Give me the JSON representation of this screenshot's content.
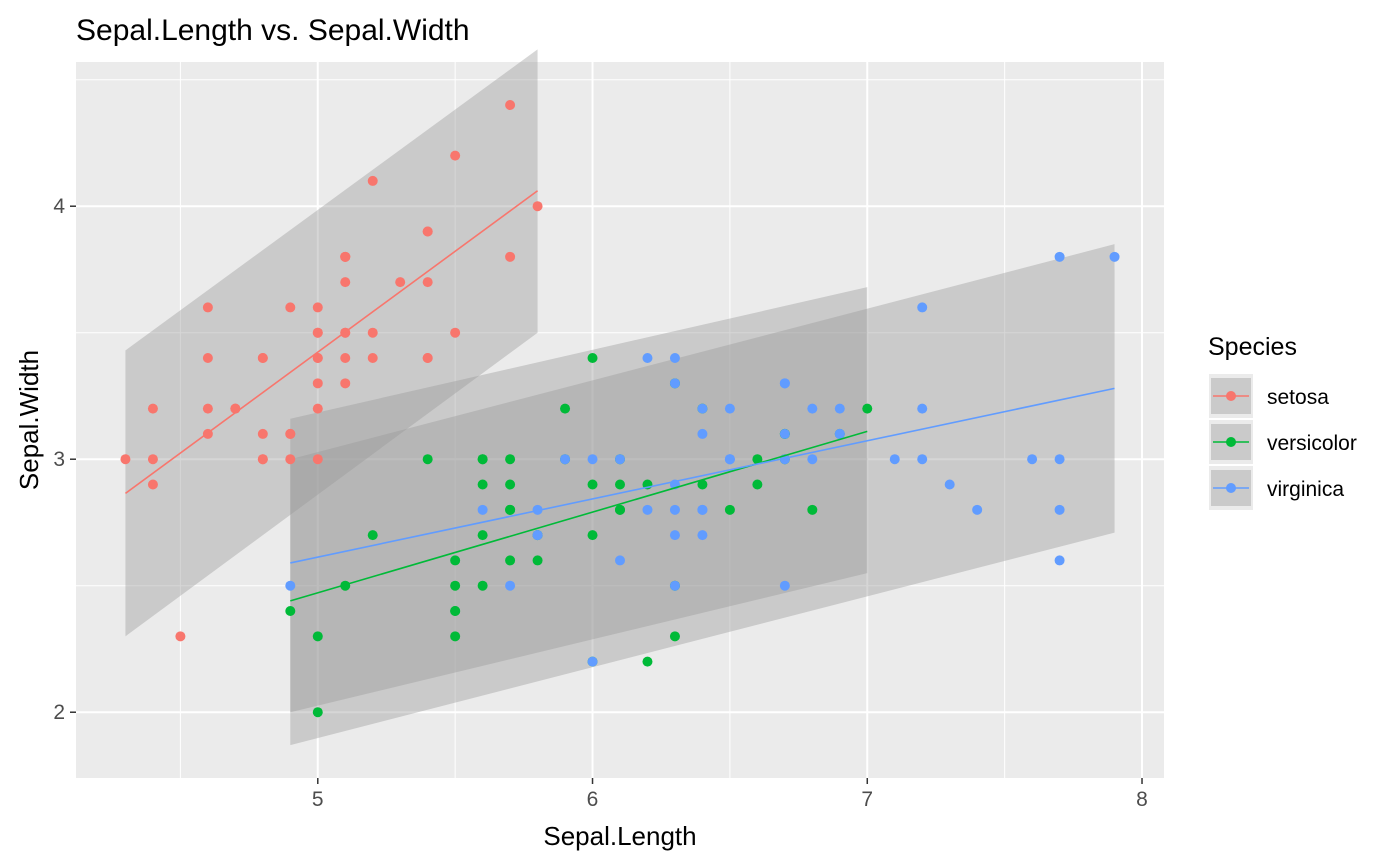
{
  "chart_data": {
    "type": "scatter",
    "title": "Sepal.Length vs. Sepal.Width",
    "xlabel": "Sepal.Length",
    "ylabel": "Sepal.Width",
    "xlim": [
      4.12,
      8.08
    ],
    "ylim": [
      1.74,
      4.57
    ],
    "x_ticks": [
      5,
      6,
      7,
      8
    ],
    "y_ticks": [
      2,
      3,
      4
    ],
    "x_tick_labels": [
      "5",
      "6",
      "7",
      "8"
    ],
    "y_tick_labels": [
      "2",
      "3",
      "4"
    ],
    "grid": true,
    "legend": {
      "title": "Species",
      "position": "right"
    },
    "series": [
      {
        "name": "setosa",
        "color": "#F8766D",
        "points": [
          [
            5.1,
            3.5
          ],
          [
            4.9,
            3.0
          ],
          [
            4.7,
            3.2
          ],
          [
            4.6,
            3.1
          ],
          [
            5.0,
            3.6
          ],
          [
            5.4,
            3.9
          ],
          [
            4.6,
            3.4
          ],
          [
            5.0,
            3.4
          ],
          [
            4.4,
            2.9
          ],
          [
            4.9,
            3.1
          ],
          [
            5.4,
            3.7
          ],
          [
            4.8,
            3.4
          ],
          [
            4.8,
            3.0
          ],
          [
            4.3,
            3.0
          ],
          [
            5.8,
            4.0
          ],
          [
            5.7,
            4.4
          ],
          [
            5.4,
            3.9
          ],
          [
            5.1,
            3.5
          ],
          [
            5.7,
            3.8
          ],
          [
            5.1,
            3.8
          ],
          [
            5.4,
            3.4
          ],
          [
            5.1,
            3.7
          ],
          [
            4.6,
            3.6
          ],
          [
            5.1,
            3.3
          ],
          [
            4.8,
            3.4
          ],
          [
            5.0,
            3.0
          ],
          [
            5.0,
            3.4
          ],
          [
            5.2,
            3.5
          ],
          [
            5.2,
            3.4
          ],
          [
            4.7,
            3.2
          ],
          [
            4.8,
            3.1
          ],
          [
            5.4,
            3.4
          ],
          [
            5.2,
            4.1
          ],
          [
            5.5,
            4.2
          ],
          [
            4.9,
            3.1
          ],
          [
            5.0,
            3.2
          ],
          [
            5.5,
            3.5
          ],
          [
            4.9,
            3.6
          ],
          [
            4.4,
            3.0
          ],
          [
            5.1,
            3.4
          ],
          [
            5.0,
            3.5
          ],
          [
            4.5,
            2.3
          ],
          [
            4.4,
            3.2
          ],
          [
            5.0,
            3.5
          ],
          [
            5.1,
            3.8
          ],
          [
            4.8,
            3.0
          ],
          [
            5.1,
            3.8
          ],
          [
            4.6,
            3.2
          ],
          [
            5.3,
            3.7
          ],
          [
            5.0,
            3.3
          ]
        ],
        "fit": {
          "x": [
            4.3,
            5.8
          ],
          "y": [
            2.865,
            4.061
          ],
          "lower": [
            2.3,
            3.5
          ],
          "upper": [
            3.43,
            4.62
          ]
        }
      },
      {
        "name": "versicolor",
        "color": "#00BA38",
        "points": [
          [
            7.0,
            3.2
          ],
          [
            6.4,
            3.2
          ],
          [
            6.9,
            3.1
          ],
          [
            5.5,
            2.3
          ],
          [
            6.5,
            2.8
          ],
          [
            5.7,
            2.8
          ],
          [
            6.3,
            3.3
          ],
          [
            4.9,
            2.4
          ],
          [
            6.6,
            2.9
          ],
          [
            5.2,
            2.7
          ],
          [
            5.0,
            2.0
          ],
          [
            5.9,
            3.0
          ],
          [
            6.0,
            2.2
          ],
          [
            6.1,
            2.9
          ],
          [
            5.6,
            2.9
          ],
          [
            6.7,
            3.1
          ],
          [
            5.6,
            3.0
          ],
          [
            5.8,
            2.7
          ],
          [
            6.2,
            2.2
          ],
          [
            5.6,
            2.5
          ],
          [
            5.9,
            3.2
          ],
          [
            6.1,
            2.8
          ],
          [
            6.3,
            2.5
          ],
          [
            6.1,
            2.8
          ],
          [
            6.4,
            2.9
          ],
          [
            6.6,
            3.0
          ],
          [
            6.8,
            2.8
          ],
          [
            6.7,
            3.0
          ],
          [
            6.0,
            2.9
          ],
          [
            5.7,
            2.6
          ],
          [
            5.5,
            2.4
          ],
          [
            5.5,
            2.4
          ],
          [
            5.8,
            2.7
          ],
          [
            6.0,
            2.7
          ],
          [
            5.4,
            3.0
          ],
          [
            6.0,
            3.4
          ],
          [
            6.7,
            3.1
          ],
          [
            6.3,
            2.3
          ],
          [
            5.6,
            3.0
          ],
          [
            5.5,
            2.5
          ],
          [
            5.5,
            2.6
          ],
          [
            6.1,
            3.0
          ],
          [
            5.8,
            2.6
          ],
          [
            5.0,
            2.3
          ],
          [
            5.6,
            2.7
          ],
          [
            5.7,
            3.0
          ],
          [
            5.7,
            2.9
          ],
          [
            6.2,
            2.9
          ],
          [
            5.1,
            2.5
          ],
          [
            5.7,
            2.8
          ]
        ],
        "fit": {
          "x": [
            4.9,
            7.0
          ],
          "y": [
            2.44,
            3.11
          ],
          "lower": [
            2.0,
            2.55
          ],
          "upper": [
            3.16,
            3.68
          ]
        }
      },
      {
        "name": "virginica",
        "color": "#619CFF",
        "points": [
          [
            6.3,
            3.3
          ],
          [
            5.8,
            2.7
          ],
          [
            7.1,
            3.0
          ],
          [
            6.3,
            2.9
          ],
          [
            6.5,
            3.0
          ],
          [
            7.6,
            3.0
          ],
          [
            4.9,
            2.5
          ],
          [
            7.3,
            2.9
          ],
          [
            6.7,
            2.5
          ],
          [
            7.2,
            3.6
          ],
          [
            6.5,
            3.2
          ],
          [
            6.4,
            2.7
          ],
          [
            6.8,
            3.0
          ],
          [
            5.7,
            2.5
          ],
          [
            5.8,
            2.8
          ],
          [
            6.4,
            3.2
          ],
          [
            6.5,
            3.0
          ],
          [
            7.7,
            3.8
          ],
          [
            7.7,
            2.6
          ],
          [
            6.0,
            2.2
          ],
          [
            6.9,
            3.2
          ],
          [
            5.6,
            2.8
          ],
          [
            7.7,
            2.8
          ],
          [
            6.3,
            2.7
          ],
          [
            6.7,
            3.3
          ],
          [
            7.2,
            3.2
          ],
          [
            6.2,
            2.8
          ],
          [
            6.1,
            3.0
          ],
          [
            6.4,
            2.8
          ],
          [
            7.2,
            3.0
          ],
          [
            7.4,
            2.8
          ],
          [
            7.9,
            3.8
          ],
          [
            6.4,
            2.8
          ],
          [
            6.3,
            2.8
          ],
          [
            6.1,
            2.6
          ],
          [
            7.7,
            3.0
          ],
          [
            6.3,
            3.4
          ],
          [
            6.4,
            3.1
          ],
          [
            6.0,
            3.0
          ],
          [
            6.9,
            3.1
          ],
          [
            6.7,
            3.1
          ],
          [
            6.9,
            3.1
          ],
          [
            5.8,
            2.7
          ],
          [
            6.8,
            3.2
          ],
          [
            6.7,
            3.3
          ],
          [
            6.7,
            3.0
          ],
          [
            6.3,
            2.5
          ],
          [
            6.5,
            3.0
          ],
          [
            6.2,
            3.4
          ],
          [
            5.9,
            3.0
          ]
        ],
        "fit": {
          "x": [
            4.9,
            7.9
          ],
          "y": [
            2.59,
            3.28
          ],
          "lower": [
            1.87,
            2.71
          ],
          "upper": [
            3.0,
            3.85
          ]
        }
      }
    ]
  }
}
